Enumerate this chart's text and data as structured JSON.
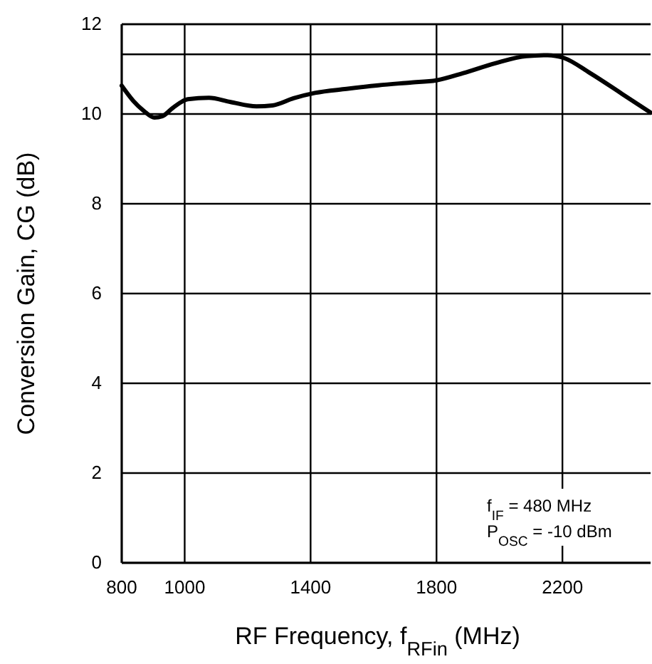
{
  "chart_data": {
    "type": "line",
    "xlabel": "RF Frequency, f$_{RFin}$ (MHz)",
    "ylabel": "Conversion Gain, CG (dB)",
    "x": [
      800,
      837,
      870,
      904,
      929,
      963,
      1010,
      1077,
      1144,
      1228,
      1279,
      1346,
      1414,
      1514,
      1615,
      1716,
      1800,
      1885,
      1986,
      2086,
      2153,
      2204,
      2288,
      2389,
      2480
    ],
    "series": [
      {
        "color": "#000000",
        "values": [
          10.63,
          10.29,
          10.07,
          9.92,
          9.95,
          10.14,
          10.33,
          10.36,
          10.27,
          10.17,
          10.19,
          10.35,
          10.47,
          10.56,
          10.64,
          10.7,
          10.75,
          10.91,
          11.13,
          11.29,
          11.31,
          11.25,
          10.91,
          10.45,
          10.03
        ]
      }
    ],
    "xlim": [
      800,
      2480
    ],
    "xticks": [
      800,
      1000,
      1400,
      1800,
      2200
    ],
    "ylim": [
      0,
      12
    ],
    "yticks": [
      0,
      2,
      4,
      6,
      8,
      10,
      {
        "value": 11.33,
        "label": null
      },
      12
    ],
    "grid": true,
    "marker": "none",
    "line_style": "solid",
    "annotations": [
      "f$_{IF}$ = 480 MHz",
      "P$_{OSC}$ = -10 dBm"
    ]
  }
}
